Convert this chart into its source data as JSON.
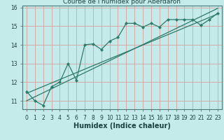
{
  "title": "Courbe de l'humidex pour Aberdaron",
  "xlabel": "Humidex (Indice chaleur)",
  "bg_color": "#c5eaea",
  "grid_color": "#d4a0a0",
  "line_color": "#2d7a6a",
  "xlim": [
    -0.5,
    23.5
  ],
  "ylim": [
    10.55,
    16.1
  ],
  "yticks": [
    11,
    12,
    13,
    14,
    15,
    16
  ],
  "xticks": [
    0,
    1,
    2,
    3,
    4,
    5,
    6,
    7,
    8,
    9,
    10,
    11,
    12,
    13,
    14,
    15,
    16,
    17,
    18,
    19,
    20,
    21,
    22,
    23
  ],
  "main_x": [
    0,
    1,
    2,
    3,
    4,
    5,
    6,
    7,
    8,
    9,
    10,
    11,
    12,
    13,
    14,
    15,
    16,
    17,
    18,
    19,
    20,
    21,
    22,
    23
  ],
  "main_y": [
    11.5,
    11.0,
    10.75,
    11.75,
    12.0,
    13.0,
    12.1,
    14.0,
    14.05,
    13.75,
    14.2,
    14.4,
    15.15,
    15.15,
    14.95,
    15.15,
    14.95,
    15.35,
    15.35,
    15.35,
    15.35,
    15.05,
    15.35,
    15.7
  ],
  "line2_y_start": 11.4,
  "line2_y_end": 15.65,
  "line3_y_start": 11.0,
  "line3_y_end": 15.95,
  "tick_fontsize": 5.5,
  "label_fontsize": 7.0,
  "title_fontsize": 6.5
}
